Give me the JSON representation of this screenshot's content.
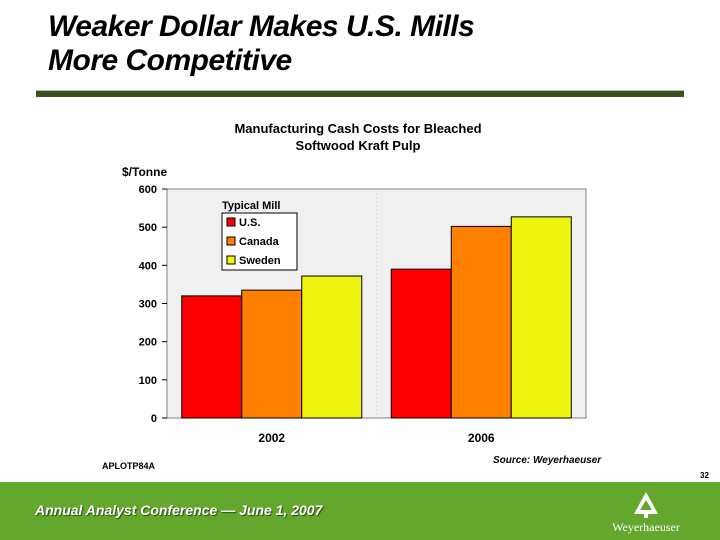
{
  "slide": {
    "title_line1": "Weaker Dollar Makes U.S. Mills",
    "title_line2": "More Competitive",
    "code": "APLOTP84A",
    "source": "Source: Weyerhaeuser",
    "page_number": "32",
    "footer": "Annual Analyst Conference — June 1, 2007",
    "logo_name": "Weyerhaeuser",
    "colors": {
      "footer": "#63a82c",
      "rule": "#3f4f1f",
      "plot_bg": "#f0f0f0"
    }
  },
  "chart_data": {
    "type": "bar",
    "title_line1": "Manufacturing Cash Costs for Bleached",
    "title_line2": "Softwood Kraft Pulp",
    "ylabel": "$/Tonne",
    "xlabel": "",
    "categories": [
      "2002",
      "2006"
    ],
    "ylim": [
      0,
      600
    ],
    "yticks": [
      0,
      100,
      200,
      300,
      400,
      500,
      600
    ],
    "legend_title": "Typical Mill",
    "legend_position": "top-left",
    "series": [
      {
        "name": "U.S.",
        "color": "#ff0000",
        "values": [
          320,
          390
        ]
      },
      {
        "name": "Canada",
        "color": "#ff8000",
        "values": [
          335,
          502
        ]
      },
      {
        "name": "Sweden",
        "color": "#eff510",
        "values": [
          372,
          527
        ]
      }
    ]
  }
}
